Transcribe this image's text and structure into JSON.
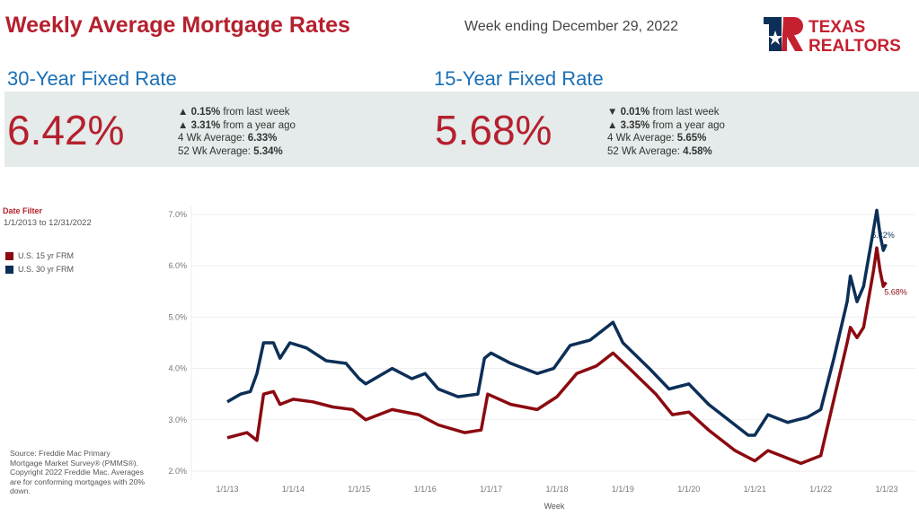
{
  "header": {
    "title": "Weekly Average Mortgage Rates",
    "week": "Week ending December 29, 2022",
    "logo_text": "TEXAS REALTORS"
  },
  "fixed30": {
    "label": "30-Year Fixed Rate",
    "rate": "6.42%",
    "l1a": "▲ ",
    "l1b": "0.15%",
    "l1c": " from last week",
    "l2a": "▲ ",
    "l2b": "3.31%",
    "l2c": " from a year ago",
    "l3a": "4 Wk Average: ",
    "l3b": "6.33%",
    "l4a": "52 Wk Average: ",
    "l4b": "5.34%"
  },
  "fixed15": {
    "label": "15-Year Fixed Rate",
    "rate": "5.68%",
    "l1a": "▼ ",
    "l1b": "0.01%",
    "l1c": " from last week",
    "l2a": "▲ ",
    "l2b": "3.35%",
    "l2c": " from a year ago",
    "l3a": "4 Wk Average: ",
    "l3b": "5.65%",
    "l4a": "52 Wk Average: ",
    "l4b": "4.58%"
  },
  "filter": {
    "label": "Date Filter",
    "value": "1/1/2013 to 12/31/2022"
  },
  "legend": [
    {
      "label": "U.S. 15 yr FRM",
      "color": "#8b0a10"
    },
    {
      "label": "U.S. 30 yr FRM",
      "color": "#0c2f57"
    }
  ],
  "source": "Source: Freddie Mac Primary Mortgage Market Survey® (PMMS®). Copyright 2022 Freddie Mac. Averages are for conforming mortgages with 20% down.",
  "chart_data": {
    "type": "line",
    "xlabel": "Week",
    "ylabel": "",
    "ylim": [
      2.0,
      7.0
    ],
    "xlim": [
      2012.7,
      2023.4
    ],
    "yticks": [
      {
        "v": 2,
        "label": "2.0%"
      },
      {
        "v": 3,
        "label": "3.0%"
      },
      {
        "v": 4,
        "label": "4.0%"
      },
      {
        "v": 5,
        "label": "5.0%"
      },
      {
        "v": 6,
        "label": "6.0%"
      },
      {
        "v": 7,
        "label": "7.0%"
      }
    ],
    "xticks": [
      {
        "v": 2013,
        "label": "1/1/13"
      },
      {
        "v": 2014,
        "label": "1/1/14"
      },
      {
        "v": 2015,
        "label": "1/1/15"
      },
      {
        "v": 2016,
        "label": "1/1/16"
      },
      {
        "v": 2017,
        "label": "1/1/17"
      },
      {
        "v": 2018,
        "label": "1/1/18"
      },
      {
        "v": 2019,
        "label": "1/1/19"
      },
      {
        "v": 2020,
        "label": "1/1/20"
      },
      {
        "v": 2021,
        "label": "1/1/21"
      },
      {
        "v": 2022,
        "label": "1/1/22"
      },
      {
        "v": 2023,
        "label": "1/1/23"
      }
    ],
    "series": [
      {
        "name": "U.S. 30 yr FRM",
        "color": "#0c2f57",
        "end_label": "6.42%",
        "points": [
          [
            2013.0,
            3.35
          ],
          [
            2013.2,
            3.5
          ],
          [
            2013.35,
            3.55
          ],
          [
            2013.45,
            3.9
          ],
          [
            2013.55,
            4.5
          ],
          [
            2013.7,
            4.5
          ],
          [
            2013.8,
            4.2
          ],
          [
            2013.95,
            4.5
          ],
          [
            2014.2,
            4.4
          ],
          [
            2014.5,
            4.15
          ],
          [
            2014.8,
            4.1
          ],
          [
            2015.0,
            3.8
          ],
          [
            2015.1,
            3.7
          ],
          [
            2015.5,
            4.0
          ],
          [
            2015.8,
            3.8
          ],
          [
            2016.0,
            3.9
          ],
          [
            2016.2,
            3.6
          ],
          [
            2016.5,
            3.45
          ],
          [
            2016.8,
            3.5
          ],
          [
            2016.9,
            4.2
          ],
          [
            2017.0,
            4.3
          ],
          [
            2017.3,
            4.1
          ],
          [
            2017.7,
            3.9
          ],
          [
            2017.95,
            4.0
          ],
          [
            2018.2,
            4.45
          ],
          [
            2018.5,
            4.55
          ],
          [
            2018.85,
            4.9
          ],
          [
            2019.0,
            4.5
          ],
          [
            2019.4,
            4.0
          ],
          [
            2019.7,
            3.6
          ],
          [
            2020.0,
            3.7
          ],
          [
            2020.3,
            3.3
          ],
          [
            2020.6,
            3.0
          ],
          [
            2020.9,
            2.7
          ],
          [
            2021.0,
            2.7
          ],
          [
            2021.2,
            3.1
          ],
          [
            2021.5,
            2.95
          ],
          [
            2021.8,
            3.05
          ],
          [
            2022.0,
            3.2
          ],
          [
            2022.2,
            4.2
          ],
          [
            2022.4,
            5.3
          ],
          [
            2022.45,
            5.8
          ],
          [
            2022.55,
            5.3
          ],
          [
            2022.65,
            5.6
          ],
          [
            2022.8,
            6.7
          ],
          [
            2022.85,
            7.08
          ],
          [
            2022.9,
            6.6
          ],
          [
            2022.95,
            6.3
          ],
          [
            2022.99,
            6.42
          ]
        ]
      },
      {
        "name": "U.S. 15 yr FRM",
        "color": "#8b0a10",
        "end_label": "5.68%",
        "points": [
          [
            2013.0,
            2.65
          ],
          [
            2013.3,
            2.75
          ],
          [
            2013.45,
            2.6
          ],
          [
            2013.55,
            3.5
          ],
          [
            2013.7,
            3.55
          ],
          [
            2013.8,
            3.3
          ],
          [
            2014.0,
            3.4
          ],
          [
            2014.3,
            3.35
          ],
          [
            2014.6,
            3.25
          ],
          [
            2014.9,
            3.2
          ],
          [
            2015.1,
            3.0
          ],
          [
            2015.5,
            3.2
          ],
          [
            2015.9,
            3.1
          ],
          [
            2016.2,
            2.9
          ],
          [
            2016.6,
            2.75
          ],
          [
            2016.85,
            2.8
          ],
          [
            2016.95,
            3.5
          ],
          [
            2017.3,
            3.3
          ],
          [
            2017.7,
            3.2
          ],
          [
            2018.0,
            3.45
          ],
          [
            2018.3,
            3.9
          ],
          [
            2018.6,
            4.05
          ],
          [
            2018.85,
            4.3
          ],
          [
            2019.1,
            4.0
          ],
          [
            2019.5,
            3.5
          ],
          [
            2019.75,
            3.1
          ],
          [
            2020.0,
            3.15
          ],
          [
            2020.3,
            2.8
          ],
          [
            2020.7,
            2.4
          ],
          [
            2021.0,
            2.2
          ],
          [
            2021.2,
            2.4
          ],
          [
            2021.5,
            2.25
          ],
          [
            2021.7,
            2.15
          ],
          [
            2022.0,
            2.3
          ],
          [
            2022.2,
            3.4
          ],
          [
            2022.4,
            4.5
          ],
          [
            2022.45,
            4.8
          ],
          [
            2022.55,
            4.6
          ],
          [
            2022.65,
            4.8
          ],
          [
            2022.8,
            5.9
          ],
          [
            2022.85,
            6.35
          ],
          [
            2022.9,
            5.9
          ],
          [
            2022.95,
            5.6
          ],
          [
            2022.99,
            5.68
          ]
        ]
      }
    ]
  }
}
